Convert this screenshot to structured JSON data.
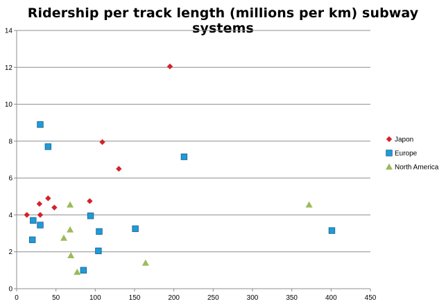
{
  "chart_data": {
    "type": "scatter",
    "title": "Ridership per track length (millions per km) subway  systems",
    "xlabel": "",
    "ylabel": "",
    "xlim": [
      0,
      450
    ],
    "ylim": [
      0,
      14
    ],
    "xticks": [
      0,
      50,
      100,
      150,
      200,
      250,
      300,
      350,
      400,
      450
    ],
    "yticks": [
      0,
      2,
      4,
      6,
      8,
      10,
      12,
      14
    ],
    "grid": "horizontal",
    "legend_position": "right",
    "series": [
      {
        "name": "Japon",
        "marker": "diamond",
        "color": "#d2232a",
        "points": [
          {
            "x": 13,
            "y": 4.0
          },
          {
            "x": 29,
            "y": 4.6
          },
          {
            "x": 30,
            "y": 4.0
          },
          {
            "x": 40,
            "y": 4.9
          },
          {
            "x": 48,
            "y": 4.4
          },
          {
            "x": 93,
            "y": 4.75
          },
          {
            "x": 109,
            "y": 7.95
          },
          {
            "x": 130,
            "y": 6.5
          },
          {
            "x": 195,
            "y": 12.05
          }
        ]
      },
      {
        "name": "Europe",
        "marker": "square",
        "color": "#1f9bd7",
        "points": [
          {
            "x": 20,
            "y": 2.65
          },
          {
            "x": 21,
            "y": 3.7
          },
          {
            "x": 30,
            "y": 3.45
          },
          {
            "x": 30,
            "y": 8.9
          },
          {
            "x": 40,
            "y": 7.7
          },
          {
            "x": 85,
            "y": 1.0
          },
          {
            "x": 94,
            "y": 3.95
          },
          {
            "x": 104,
            "y": 2.05
          },
          {
            "x": 105,
            "y": 3.1
          },
          {
            "x": 151,
            "y": 3.25
          },
          {
            "x": 213,
            "y": 7.15
          },
          {
            "x": 401,
            "y": 3.15
          }
        ]
      },
      {
        "name": "North America",
        "marker": "triangle",
        "color": "#9bbb59",
        "points": [
          {
            "x": 60,
            "y": 2.75
          },
          {
            "x": 68,
            "y": 3.2
          },
          {
            "x": 68,
            "y": 4.55
          },
          {
            "x": 69,
            "y": 1.8
          },
          {
            "x": 77,
            "y": 0.9
          },
          {
            "x": 164,
            "y": 1.4
          },
          {
            "x": 372,
            "y": 4.55
          }
        ]
      }
    ]
  }
}
